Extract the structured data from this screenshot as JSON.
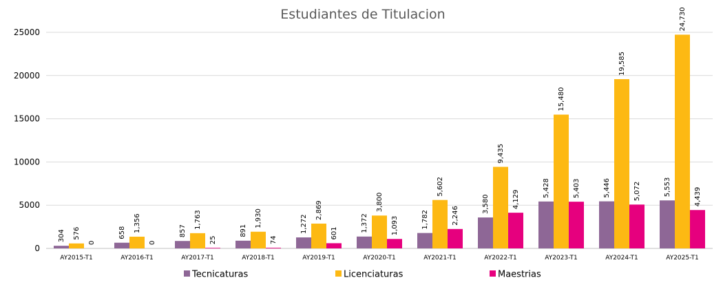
{
  "chart_data": {
    "type": "bar",
    "title": "Estudiantes de Titulacion",
    "categories": [
      "AY2015-T1",
      "AY2016-T1",
      "AY2017-T1",
      "AY2018-T1",
      "AY2019-T1",
      "AY2020-T1",
      "AY2021-T1",
      "AY2022-T1",
      "AY2023-T1",
      "AY2024-T1",
      "AY2025-T1"
    ],
    "series": [
      {
        "name": "Tecnicaturas",
        "color": "#8e6796",
        "values": [
          304,
          658,
          857,
          891,
          1272,
          1372,
          1782,
          3580,
          5428,
          5446,
          5553
        ],
        "labels": [
          "304",
          "658",
          "857",
          "891",
          "1,272",
          "1,372",
          "1,782",
          "3,580",
          "5,428",
          "5,446",
          "5,553"
        ]
      },
      {
        "name": "Licenciaturas",
        "color": "#fdb913",
        "values": [
          576,
          1356,
          1763,
          1930,
          2869,
          3800,
          5602,
          9435,
          15480,
          19585,
          24730
        ],
        "labels": [
          "576",
          "1,356",
          "1,763",
          "1,930",
          "2,869",
          "3,800",
          "5,602",
          "9,435",
          "15,480",
          "19,585",
          "24,730"
        ]
      },
      {
        "name": "Maestrias",
        "color": "#e6007e",
        "values": [
          0,
          0,
          25,
          74,
          601,
          1093,
          2246,
          4129,
          5403,
          5072,
          4439
        ],
        "labels": [
          "0",
          "0",
          "25",
          "74",
          "601",
          "1,093",
          "2,246",
          "4,129",
          "5,403",
          "5,072",
          "4,439"
        ]
      }
    ],
    "ylim": [
      0,
      25000
    ],
    "yticks": [
      0,
      5000,
      10000,
      15000,
      20000,
      25000
    ],
    "ytick_labels": [
      "0",
      "5000",
      "10000",
      "15000",
      "20000",
      "25000"
    ],
    "grid": true,
    "legend_position": "bottom"
  }
}
